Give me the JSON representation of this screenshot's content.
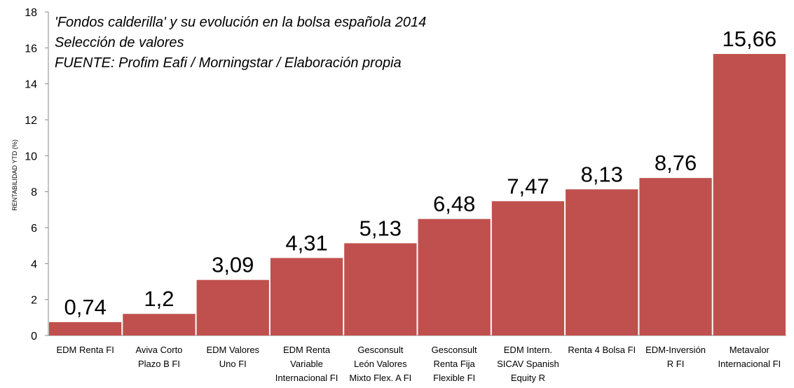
{
  "chart_data": {
    "type": "bar",
    "title": "'Fondos calderilla' y su evolución en la bolsa española 2014",
    "subtitle": "Selección de valores",
    "source": "FUENTE: Profim Eafi / Morningstar / Elaboración propia",
    "ylabel": "RENTABILIDAD YTD (%)",
    "xlabel": "",
    "ylim": [
      0,
      18
    ],
    "yticks": [
      0,
      2,
      4,
      6,
      8,
      10,
      12,
      14,
      16,
      18
    ],
    "grid": false,
    "bar_color": "#c0504d",
    "categories": [
      [
        "EDM Renta FI"
      ],
      [
        "Aviva Corto",
        "Plazo B FI"
      ],
      [
        "EDM Valores",
        "Uno FI"
      ],
      [
        "EDM Renta",
        "Variable",
        "Internacional FI"
      ],
      [
        "Gesconsult",
        "León Valores",
        "Mixto Flex. A FI"
      ],
      [
        "Gesconsult",
        "Renta Fija",
        "Flexible FI"
      ],
      [
        "EDM Intern.",
        "SICAV Spanish",
        "Equity R"
      ],
      [
        "Renta 4 Bolsa FI"
      ],
      [
        "EDM-Inversión",
        "R FI"
      ],
      [
        "Metavalor",
        "Internacional FI"
      ]
    ],
    "values": [
      0.74,
      1.2,
      3.09,
      4.31,
      5.13,
      6.48,
      7.47,
      8.13,
      8.76,
      15.66
    ],
    "data_labels": [
      "0,74",
      "1,2",
      "3,09",
      "4,31",
      "5,13",
      "6,48",
      "7,47",
      "8,13",
      "8,76",
      "15,66"
    ]
  }
}
